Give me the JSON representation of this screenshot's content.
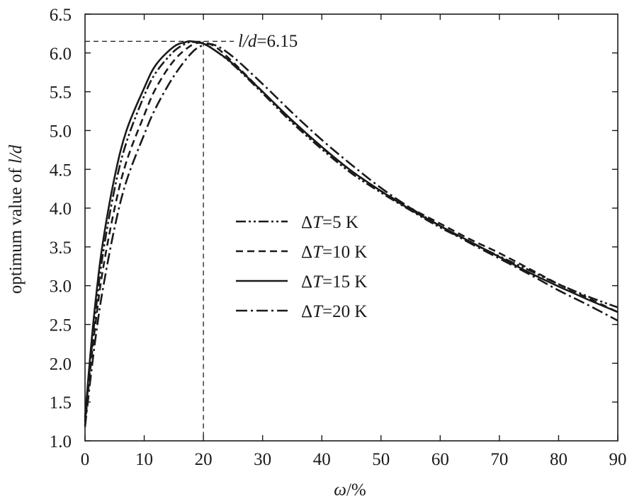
{
  "chart_data": {
    "type": "line",
    "title": "",
    "xlabel": {
      "symbol": "ω",
      "unit": "/%"
    },
    "ylabel": {
      "prefix": "optimum value of ",
      "italic": "l/d"
    },
    "xlim": [
      0,
      90
    ],
    "ylim": [
      1.0,
      6.5
    ],
    "x_ticks": [
      "0",
      "10",
      "20",
      "30",
      "40",
      "50",
      "60",
      "70",
      "80",
      "90"
    ],
    "y_ticks": [
      "1.0",
      "1.5",
      "2.0",
      "2.5",
      "3.0",
      "3.5",
      "4.0",
      "4.5",
      "5.0",
      "5.5",
      "6.0",
      "6.5"
    ],
    "grid": false,
    "legend_position": "center",
    "annotation": {
      "italic": "l/d",
      "text": "=6.15",
      "x": 20,
      "y": 6.15
    },
    "series": [
      {
        "name": "ΔT=5 K",
        "delta": "Δ",
        "italic": "T",
        "rest": "=5 K",
        "style": "dash-dot-dot",
        "x": [
          0,
          1,
          2,
          3,
          5,
          7,
          10,
          12,
          15,
          17,
          18,
          20,
          22,
          25,
          30,
          35,
          40,
          45,
          50,
          55,
          60,
          65,
          70,
          75,
          80,
          85,
          90
        ],
        "y": [
          1.25,
          2.1,
          2.8,
          3.4,
          4.25,
          4.85,
          5.45,
          5.75,
          6.02,
          6.12,
          6.14,
          6.12,
          6.03,
          5.85,
          5.48,
          5.1,
          4.76,
          4.45,
          4.2,
          3.97,
          3.75,
          3.56,
          3.38,
          3.2,
          3.02,
          2.86,
          2.72
        ]
      },
      {
        "name": "ΔT=10 K",
        "delta": "Δ",
        "italic": "T",
        "rest": "=10 K",
        "style": "dashed",
        "x": [
          0,
          1,
          2,
          3,
          5,
          7,
          10,
          12,
          15,
          18,
          20,
          22,
          25,
          30,
          35,
          40,
          45,
          50,
          55,
          60,
          65,
          70,
          75,
          80,
          85,
          90
        ],
        "y": [
          1.2,
          2.0,
          2.65,
          3.2,
          4.0,
          4.6,
          5.2,
          5.55,
          5.9,
          6.1,
          6.13,
          6.08,
          5.88,
          5.5,
          5.12,
          4.78,
          4.48,
          4.22,
          4.0,
          3.8,
          3.6,
          3.42,
          3.22,
          3.02,
          2.84,
          2.66
        ]
      },
      {
        "name": "ΔT=15 K",
        "delta": "Δ",
        "italic": "T",
        "rest": "=15 K",
        "style": "solid",
        "x": [
          0,
          1,
          2,
          3,
          5,
          7,
          10,
          12,
          15,
          17,
          18,
          20,
          22,
          25,
          30,
          35,
          40,
          45,
          50,
          55,
          60,
          65,
          70,
          75,
          80,
          85,
          90
        ],
        "y": [
          1.3,
          2.2,
          2.95,
          3.55,
          4.4,
          5.0,
          5.55,
          5.85,
          6.08,
          6.14,
          6.15,
          6.12,
          6.03,
          5.86,
          5.5,
          5.13,
          4.79,
          4.48,
          4.22,
          3.98,
          3.77,
          3.57,
          3.37,
          3.17,
          2.99,
          2.82,
          2.66
        ]
      },
      {
        "name": "ΔT=20 K",
        "delta": "Δ",
        "italic": "T",
        "rest": "=20 K",
        "style": "dash-dot",
        "x": [
          0,
          1,
          2,
          3,
          5,
          7,
          10,
          12,
          15,
          18,
          20,
          22,
          25,
          30,
          35,
          40,
          45,
          50,
          55,
          60,
          65,
          70,
          75,
          80,
          85,
          90
        ],
        "y": [
          1.18,
          1.85,
          2.45,
          2.95,
          3.75,
          4.35,
          4.95,
          5.3,
          5.7,
          6.0,
          6.1,
          6.1,
          5.95,
          5.6,
          5.23,
          4.88,
          4.56,
          4.26,
          4.0,
          3.77,
          3.55,
          3.35,
          3.15,
          2.94,
          2.75,
          2.55
        ]
      }
    ]
  }
}
